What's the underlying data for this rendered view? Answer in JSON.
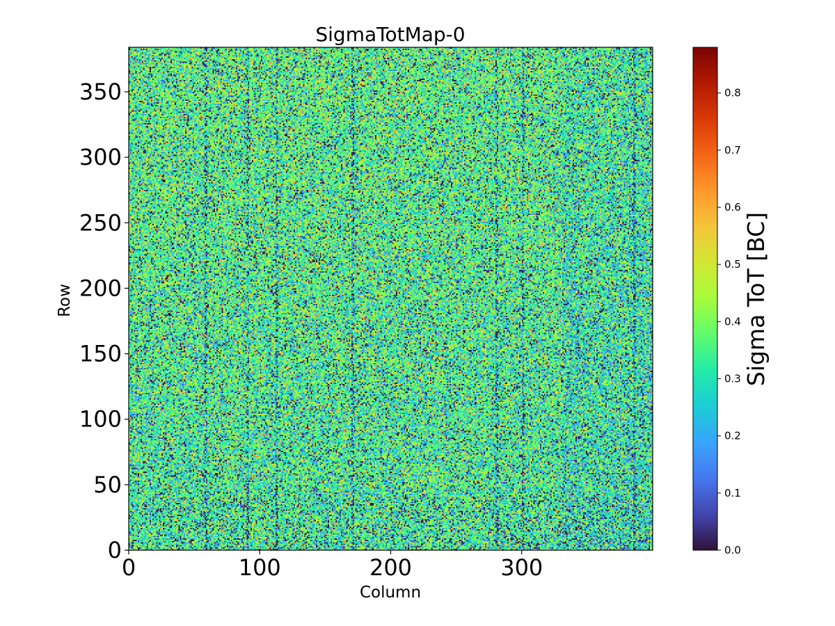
{
  "chart_data": {
    "type": "heatmap",
    "title": "SigmaTotMap-0",
    "xlabel": "Column",
    "ylabel": "Row",
    "colorbar_label": "Sigma ToT [BC]",
    "colormap": "turbo",
    "grid": false,
    "x_range": [
      0,
      400
    ],
    "y_range": [
      0,
      384
    ],
    "x_ticks": [
      0,
      100,
      200,
      300
    ],
    "y_ticks": [
      0,
      50,
      100,
      150,
      200,
      250,
      300,
      350
    ],
    "color_range": [
      0.0,
      0.88
    ],
    "colorbar_ticks": [
      0.0,
      0.1,
      0.2,
      0.3,
      0.4,
      0.5,
      0.6,
      0.7,
      0.8
    ],
    "colorbar_tick_labels": [
      "0.0",
      "0.1",
      "0.2",
      "0.3",
      "0.4",
      "0.5",
      "0.6",
      "0.7",
      "0.8"
    ],
    "value_distribution": {
      "typical_mean": 0.33,
      "typical_spread": 0.12,
      "dead_pixel_value": 0.0,
      "dead_pixel_fraction": 0.09,
      "note": "noisy per-pixel map; most pixels between 0.2 and 0.45, scattered zero-value pixels"
    },
    "darker_columns": [
      58,
      90,
      112,
      170,
      280,
      300,
      385
    ]
  }
}
